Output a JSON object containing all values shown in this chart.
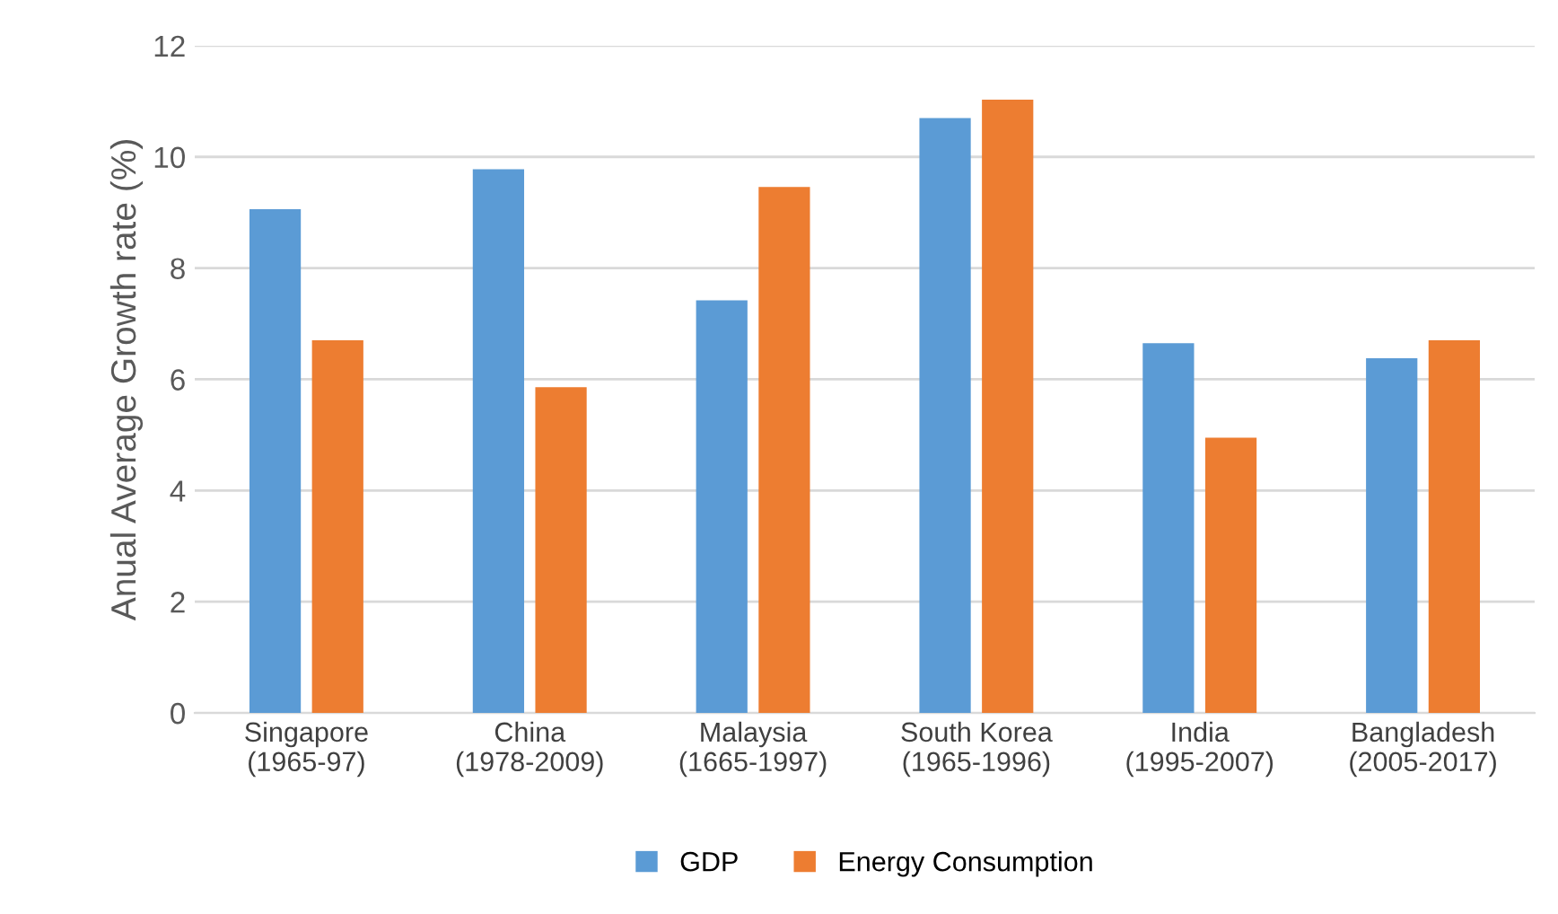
{
  "chart_data": {
    "type": "bar",
    "ylabel": "Anual Average Growth rate (%)",
    "categories": [
      "Singapore\n(1965-97)",
      "China\n(1978-2009)",
      "Malaysia\n(1665-1997)",
      "South Korea\n(1965-1996)",
      "India\n(1995-2007)",
      "Bangladesh\n(2005-2017)"
    ],
    "series": [
      {
        "name": "GDP",
        "color": "#5b9bd5",
        "values": [
          9.06,
          9.78,
          7.42,
          10.7,
          6.65,
          6.38
        ]
      },
      {
        "name": "Energy Consumption",
        "color": "#ed7d31",
        "values": [
          6.7,
          5.86,
          9.46,
          11.03,
          4.95,
          6.7
        ]
      }
    ],
    "ylim": [
      0,
      12
    ],
    "yticks": [
      0,
      2,
      4,
      6,
      8,
      10,
      12
    ],
    "grid": "y",
    "legend": "bottom"
  }
}
